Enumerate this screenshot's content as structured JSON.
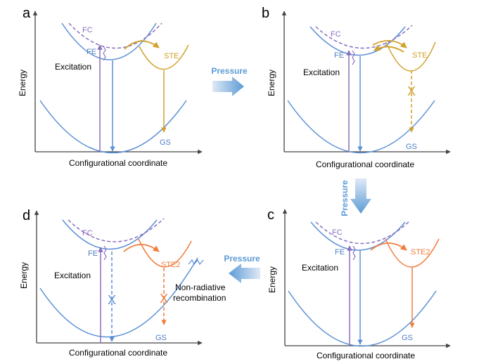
{
  "panels": [
    {
      "letter": "a",
      "ylabel": "Energy",
      "xlabel": "Configurational coordinate",
      "fc": "FC",
      "fe": "FE",
      "ste": "STE",
      "gs": "GS",
      "excitation": "Excitation"
    },
    {
      "letter": "b",
      "ylabel": "Energy",
      "xlabel": "Configurational coordinate",
      "fc": "FC",
      "fe": "FE",
      "ste": "STE",
      "gs": "GS",
      "excitation": "Excitation",
      "blocked": "X"
    },
    {
      "letter": "c",
      "ylabel": "Energy",
      "xlabel": "Configurational coordinate",
      "fc": "FC",
      "fe": "FE",
      "ste": "STE2",
      "gs": "GS",
      "excitation": "Excitation"
    },
    {
      "letter": "d",
      "ylabel": "Energy",
      "xlabel": "Configurational coordinate",
      "fc": "FC",
      "fe": "FE",
      "ste": "STE2",
      "gs": "GS",
      "excitation": "Excitation",
      "blocked": "X",
      "nonrad1": "Non-radiative",
      "nonrad2": "recombination"
    }
  ],
  "arrows": {
    "ab": "Pressure",
    "bc": "Pressure",
    "cd": "Pressure"
  },
  "colors": {
    "blue": "#5b8fd6",
    "purple": "#8a6fc0",
    "gold": "#d1a12a",
    "orange": "#ef7d3c",
    "pressure": "#5b9bd5"
  }
}
